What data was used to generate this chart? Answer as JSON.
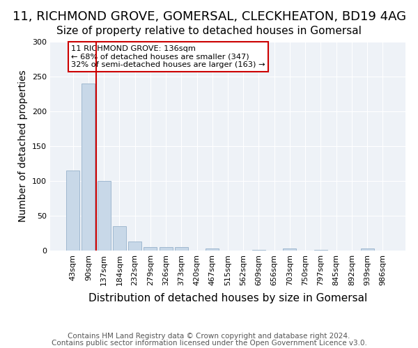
{
  "title1": "11, RICHMOND GROVE, GOMERSAL, CLECKHEATON, BD19 4AG",
  "title2": "Size of property relative to detached houses in Gomersal",
  "xlabel": "Distribution of detached houses by size in Gomersal",
  "ylabel": "Number of detached properties",
  "categories": [
    "43sqm",
    "90sqm",
    "137sqm",
    "184sqm",
    "232sqm",
    "279sqm",
    "326sqm",
    "373sqm",
    "420sqm",
    "467sqm",
    "515sqm",
    "562sqm",
    "609sqm",
    "656sqm",
    "703sqm",
    "750sqm",
    "797sqm",
    "845sqm",
    "892sqm",
    "939sqm",
    "986sqm"
  ],
  "values": [
    115,
    240,
    100,
    35,
    13,
    5,
    5,
    5,
    0,
    3,
    0,
    0,
    1,
    0,
    3,
    0,
    1,
    0,
    0,
    3,
    0
  ],
  "bar_color": "#c8d8e8",
  "bar_edge_color": "#a0b8d0",
  "vline_x": 1.5,
  "vline_color": "#cc0000",
  "annotation_text": "11 RICHMOND GROVE: 136sqm\n← 68% of detached houses are smaller (347)\n32% of semi-detached houses are larger (163) →",
  "annotation_box_color": "#ffffff",
  "annotation_box_edge": "#cc0000",
  "footer1": "Contains HM Land Registry data © Crown copyright and database right 2024.",
  "footer2": "Contains public sector information licensed under the Open Government Licence v3.0.",
  "ylim": [
    0,
    300
  ],
  "yticks": [
    0,
    50,
    100,
    150,
    200,
    250,
    300
  ],
  "bg_color": "#eef2f7",
  "title1_fontsize": 13,
  "title2_fontsize": 11,
  "xlabel_fontsize": 11,
  "ylabel_fontsize": 10,
  "tick_fontsize": 8,
  "footer_fontsize": 7.5
}
